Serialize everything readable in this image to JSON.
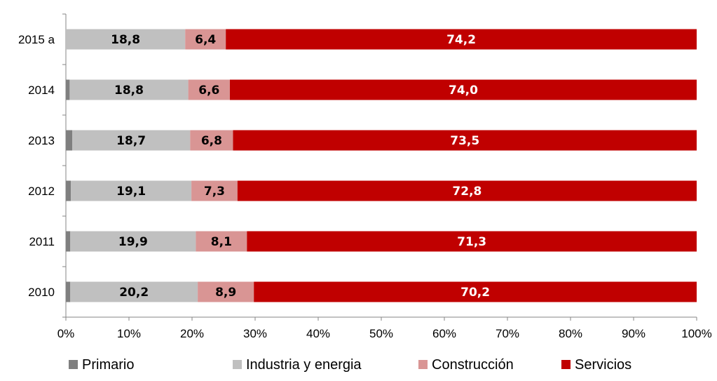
{
  "chart_data": {
    "type": "bar",
    "orientation": "horizontal",
    "stacked": "percent",
    "categories": [
      "2015 a",
      "2014",
      "2013",
      "2012",
      "2011",
      "2010"
    ],
    "series": [
      {
        "name": "Primario",
        "color": "#7f7f7f",
        "values": [
          0.0,
          0.6,
          1.0,
          0.8,
          0.7,
          0.7
        ],
        "labels": [
          "",
          "",
          "",
          "",
          "",
          ""
        ],
        "label_color": "#000000"
      },
      {
        "name": "Industria y energia",
        "color": "#c0c0c0",
        "values": [
          18.8,
          18.8,
          18.7,
          19.1,
          19.9,
          20.2
        ],
        "labels": [
          "18,8",
          "18,8",
          "18,7",
          "19,1",
          "19,9",
          "20,2"
        ],
        "label_color": "#000000"
      },
      {
        "name": "Construcción",
        "color": "#d99594",
        "values": [
          6.4,
          6.6,
          6.8,
          7.3,
          8.1,
          8.9
        ],
        "labels": [
          "6,4",
          "6,6",
          "6,8",
          "7,3",
          "8,1",
          "8,9"
        ],
        "label_color": "#000000"
      },
      {
        "name": "Servicios",
        "color": "#c00000",
        "values": [
          74.2,
          74.0,
          73.5,
          72.8,
          71.3,
          70.2
        ],
        "labels": [
          "74,2",
          "74,0",
          "73,5",
          "72,8",
          "71,3",
          "70,2"
        ],
        "label_color": "#ffffff"
      }
    ],
    "x_ticks": [
      "0%",
      "10%",
      "20%",
      "30%",
      "40%",
      "50%",
      "60%",
      "70%",
      "80%",
      "90%",
      "100%"
    ],
    "xlim": [
      0,
      100
    ],
    "grid": false,
    "legend_position": "bottom",
    "title": "",
    "xlabel": "",
    "ylabel": ""
  }
}
